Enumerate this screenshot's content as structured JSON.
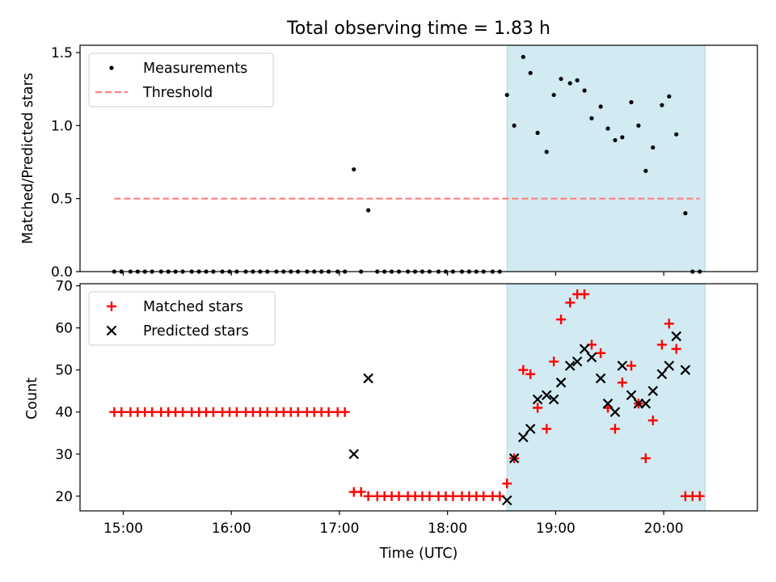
{
  "chart_data": [
    {
      "type": "scatter",
      "title": "Total observing time = 1.83 h",
      "xlabel": "",
      "ylabel": "Matched/Predicted stars",
      "ylim": [
        0,
        1.55
      ],
      "yticks": [
        "0.0",
        "0.5",
        "1.0",
        "1.5"
      ],
      "legend_position": "upper-left",
      "highlight_span": {
        "start": "18:33",
        "end": "20:23",
        "color": "#add8e6"
      },
      "series": [
        {
          "name": "Measurements",
          "marker": "dot",
          "color": "#000000",
          "points": [
            [
              "14:55",
              0
            ],
            [
              "14:59",
              0
            ],
            [
              "15:04",
              0
            ],
            [
              "15:08",
              0
            ],
            [
              "15:12",
              0
            ],
            [
              "15:16",
              0
            ],
            [
              "15:21",
              0
            ],
            [
              "15:25",
              0
            ],
            [
              "15:29",
              0
            ],
            [
              "15:33",
              0
            ],
            [
              "15:38",
              0
            ],
            [
              "15:42",
              0
            ],
            [
              "15:46",
              0
            ],
            [
              "15:50",
              0
            ],
            [
              "15:55",
              0
            ],
            [
              "15:59",
              0
            ],
            [
              "16:03",
              0
            ],
            [
              "16:08",
              0
            ],
            [
              "16:12",
              0
            ],
            [
              "16:16",
              0
            ],
            [
              "16:20",
              0
            ],
            [
              "16:25",
              0
            ],
            [
              "16:29",
              0
            ],
            [
              "16:33",
              0
            ],
            [
              "16:37",
              0
            ],
            [
              "16:42",
              0
            ],
            [
              "16:46",
              0
            ],
            [
              "16:50",
              0
            ],
            [
              "16:54",
              0
            ],
            [
              "16:59",
              0
            ],
            [
              "17:03",
              0
            ],
            [
              "17:08",
              0.7
            ],
            [
              "17:12",
              0
            ],
            [
              "17:16",
              0.42
            ],
            [
              "17:21",
              0
            ],
            [
              "17:25",
              0
            ],
            [
              "17:29",
              0
            ],
            [
              "17:33",
              0
            ],
            [
              "17:38",
              0
            ],
            [
              "17:42",
              0
            ],
            [
              "17:46",
              0
            ],
            [
              "17:50",
              0
            ],
            [
              "17:55",
              0
            ],
            [
              "17:59",
              0
            ],
            [
              "18:03",
              0
            ],
            [
              "18:08",
              0
            ],
            [
              "18:12",
              0
            ],
            [
              "18:16",
              0
            ],
            [
              "18:20",
              0
            ],
            [
              "18:25",
              0
            ],
            [
              "18:29",
              0
            ],
            [
              "18:33",
              1.21
            ],
            [
              "18:37",
              1.0
            ],
            [
              "18:42",
              1.47
            ],
            [
              "18:46",
              1.36
            ],
            [
              "18:50",
              0.95
            ],
            [
              "18:55",
              0.82
            ],
            [
              "18:59",
              1.21
            ],
            [
              "19:03",
              1.32
            ],
            [
              "19:08",
              1.29
            ],
            [
              "19:12",
              1.31
            ],
            [
              "19:16",
              1.24
            ],
            [
              "19:20",
              1.05
            ],
            [
              "19:25",
              1.13
            ],
            [
              "19:29",
              0.98
            ],
            [
              "19:33",
              0.9
            ],
            [
              "19:37",
              0.92
            ],
            [
              "19:42",
              1.16
            ],
            [
              "19:46",
              1.0
            ],
            [
              "19:50",
              0.69
            ],
            [
              "19:54",
              0.85
            ],
            [
              "19:59",
              1.14
            ],
            [
              "20:03",
              1.2
            ],
            [
              "20:07",
              0.94
            ],
            [
              "20:12",
              0.4
            ],
            [
              "20:16",
              0
            ],
            [
              "20:20",
              0
            ]
          ]
        },
        {
          "name": "Threshold",
          "marker": "dashed-line",
          "color": "#ff7f7f",
          "points": [
            [
              "14:55",
              0.5
            ],
            [
              "20:20",
              0.5
            ]
          ]
        }
      ]
    },
    {
      "type": "scatter",
      "title": "",
      "xlabel": "Time (UTC)",
      "ylabel": "Count",
      "ylim": [
        16.5,
        70.5
      ],
      "yticks": [
        "20",
        "30",
        "40",
        "50",
        "60",
        "70"
      ],
      "xticks": [
        "15:00",
        "16:00",
        "17:00",
        "18:00",
        "19:00",
        "20:00"
      ],
      "legend_position": "upper-left",
      "highlight_span": {
        "start": "18:33",
        "end": "20:23",
        "color": "#add8e6"
      },
      "series": [
        {
          "name": "Matched stars",
          "marker": "plus",
          "color": "#ff0000",
          "points": [
            [
              "14:55",
              40
            ],
            [
              "14:59",
              40
            ],
            [
              "15:04",
              40
            ],
            [
              "15:08",
              40
            ],
            [
              "15:12",
              40
            ],
            [
              "15:16",
              40
            ],
            [
              "15:21",
              40
            ],
            [
              "15:25",
              40
            ],
            [
              "15:29",
              40
            ],
            [
              "15:33",
              40
            ],
            [
              "15:38",
              40
            ],
            [
              "15:42",
              40
            ],
            [
              "15:46",
              40
            ],
            [
              "15:50",
              40
            ],
            [
              "15:55",
              40
            ],
            [
              "15:59",
              40
            ],
            [
              "16:03",
              40
            ],
            [
              "16:08",
              40
            ],
            [
              "16:12",
              40
            ],
            [
              "16:16",
              40
            ],
            [
              "16:20",
              40
            ],
            [
              "16:25",
              40
            ],
            [
              "16:29",
              40
            ],
            [
              "16:33",
              40
            ],
            [
              "16:37",
              40
            ],
            [
              "16:42",
              40
            ],
            [
              "16:46",
              40
            ],
            [
              "16:50",
              40
            ],
            [
              "16:54",
              40
            ],
            [
              "16:59",
              40
            ],
            [
              "17:03",
              40
            ],
            [
              "17:08",
              21
            ],
            [
              "17:12",
              21
            ],
            [
              "17:16",
              20
            ],
            [
              "17:21",
              20
            ],
            [
              "17:25",
              20
            ],
            [
              "17:29",
              20
            ],
            [
              "17:33",
              20
            ],
            [
              "17:38",
              20
            ],
            [
              "17:42",
              20
            ],
            [
              "17:46",
              20
            ],
            [
              "17:50",
              20
            ],
            [
              "17:55",
              20
            ],
            [
              "17:59",
              20
            ],
            [
              "18:03",
              20
            ],
            [
              "18:08",
              20
            ],
            [
              "18:12",
              20
            ],
            [
              "18:16",
              20
            ],
            [
              "18:20",
              20
            ],
            [
              "18:25",
              20
            ],
            [
              "18:29",
              20
            ],
            [
              "18:33",
              23
            ],
            [
              "18:37",
              29
            ],
            [
              "18:42",
              50
            ],
            [
              "18:46",
              49
            ],
            [
              "18:50",
              41
            ],
            [
              "18:55",
              36
            ],
            [
              "18:59",
              52
            ],
            [
              "19:03",
              62
            ],
            [
              "19:08",
              66
            ],
            [
              "19:12",
              68
            ],
            [
              "19:16",
              68
            ],
            [
              "19:20",
              56
            ],
            [
              "19:25",
              54
            ],
            [
              "19:29",
              41
            ],
            [
              "19:33",
              36
            ],
            [
              "19:37",
              47
            ],
            [
              "19:42",
              51
            ],
            [
              "19:46",
              42
            ],
            [
              "19:50",
              29
            ],
            [
              "19:54",
              38
            ],
            [
              "19:59",
              56
            ],
            [
              "20:03",
              61
            ],
            [
              "20:07",
              55
            ],
            [
              "20:12",
              20
            ],
            [
              "20:16",
              20
            ],
            [
              "20:20",
              20
            ]
          ]
        },
        {
          "name": "Predicted stars",
          "marker": "x",
          "color": "#000000",
          "points": [
            [
              "17:08",
              30
            ],
            [
              "17:16",
              48
            ],
            [
              "18:33",
              19
            ],
            [
              "18:37",
              29
            ],
            [
              "18:42",
              34
            ],
            [
              "18:46",
              36
            ],
            [
              "18:50",
              43
            ],
            [
              "18:55",
              44
            ],
            [
              "18:59",
              43
            ],
            [
              "19:03",
              47
            ],
            [
              "19:08",
              51
            ],
            [
              "19:12",
              52
            ],
            [
              "19:16",
              55
            ],
            [
              "19:20",
              53
            ],
            [
              "19:25",
              48
            ],
            [
              "19:29",
              42
            ],
            [
              "19:33",
              40
            ],
            [
              "19:37",
              51
            ],
            [
              "19:42",
              44
            ],
            [
              "19:46",
              42
            ],
            [
              "19:50",
              42
            ],
            [
              "19:54",
              45
            ],
            [
              "19:59",
              49
            ],
            [
              "20:03",
              51
            ],
            [
              "20:07",
              58
            ],
            [
              "20:12",
              50
            ]
          ]
        }
      ]
    }
  ]
}
